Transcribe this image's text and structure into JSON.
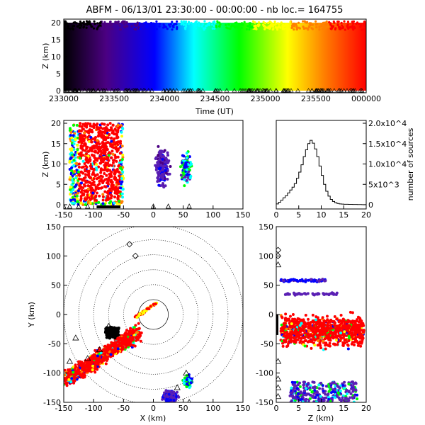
{
  "title": "ABFM - 06/13/01 23:30:00 - 00:00:00 - nb loc.= 164755",
  "colors": {
    "rainbow": [
      "#000000",
      "#4b0082",
      "#0000ff",
      "#00ffff",
      "#00ff00",
      "#ffff00",
      "#ff8000",
      "#ff0000"
    ],
    "storm_main": "#ff0000",
    "storm_mid": "#ffff00",
    "cell_purple": "#5a1fb4",
    "station_marker": "#000000"
  },
  "chart_data": [
    {
      "panel": "time-height",
      "type": "scatter",
      "ylabel": "Z (km)",
      "xlabel": "Time (UT)",
      "x_ticks": [
        "233000",
        "233500",
        "234000",
        "234500",
        "235000",
        "235500",
        "000000"
      ],
      "y_ticks": [
        "0",
        "5",
        "10",
        "15",
        "20"
      ],
      "ylim": [
        0,
        20
      ],
      "color_by": "time",
      "density": "dense 0-20 km throughout interval"
    },
    {
      "panel": "x-height",
      "type": "scatter",
      "ylabel": "Z (km)",
      "x_ticks": [
        "-150",
        "-100",
        "-50",
        "0",
        "50",
        "100",
        "150"
      ],
      "y_ticks": [
        "0",
        "5",
        "10",
        "15",
        "20"
      ],
      "xlim": [
        -150,
        150
      ],
      "ylim": [
        0,
        20
      ],
      "clusters": [
        {
          "x": [
            -140,
            -50
          ],
          "z": [
            0,
            20
          ],
          "color": "red dominant"
        },
        {
          "x": [
            0,
            35
          ],
          "z": [
            3,
            16
          ],
          "color": "purple/blue"
        },
        {
          "x": [
            40,
            65
          ],
          "z": [
            5,
            14
          ],
          "color": "blue/cyan"
        }
      ]
    },
    {
      "panel": "height-histogram",
      "type": "line",
      "ylabel": "number of sources",
      "x_ticks": [
        "0",
        "5",
        "10",
        "15",
        "20"
      ],
      "y_ticks": [
        "0",
        "5x10^3",
        "1.0x10^4",
        "1.5x10^4",
        "2.0x10^4"
      ],
      "xlim": [
        0,
        20
      ],
      "ylim": [
        0,
        20000
      ],
      "x": [
        0.5,
        1.0,
        1.5,
        2.0,
        2.5,
        3.0,
        3.5,
        4.0,
        4.5,
        5.0,
        5.5,
        6.0,
        6.5,
        7.0,
        7.5,
        8.0,
        8.5,
        9.0,
        9.5,
        10.0,
        10.5,
        11.0,
        11.5,
        12.0,
        12.5,
        13.0,
        13.5,
        14.0,
        14.5,
        15.0,
        16.0,
        17.0,
        18.0,
        19.0,
        20.0
      ],
      "values": [
        200,
        600,
        1100,
        1700,
        2200,
        2900,
        3600,
        4300,
        5200,
        6500,
        8000,
        9800,
        11800,
        13500,
        15000,
        15800,
        15100,
        13700,
        11800,
        9500,
        7200,
        5000,
        3300,
        2100,
        1300,
        800,
        500,
        300,
        200,
        150,
        100,
        80,
        60,
        40,
        30
      ]
    },
    {
      "panel": "plan-view",
      "type": "scatter",
      "xlabel": "X (km)",
      "ylabel": "Y (km)",
      "x_ticks": [
        "-150",
        "-100",
        "-50",
        "0",
        "50",
        "100",
        "150"
      ],
      "y_ticks": [
        "-150",
        "-100",
        "-50",
        "0",
        "50",
        "100",
        "150"
      ],
      "xlim": [
        -150,
        150
      ],
      "ylim": [
        -150,
        150
      ],
      "range_rings_km": [
        25,
        50,
        75,
        100,
        125,
        150
      ]
    },
    {
      "panel": "y-height",
      "type": "scatter",
      "xlabel": "Z (km)",
      "x_ticks": [
        "0",
        "5",
        "10",
        "15",
        "20"
      ],
      "y_ticks": [
        "-150",
        "-100",
        "-50",
        "0",
        "50",
        "100",
        "150"
      ],
      "xlim": [
        0,
        20
      ],
      "ylim": [
        -150,
        150
      ]
    }
  ]
}
